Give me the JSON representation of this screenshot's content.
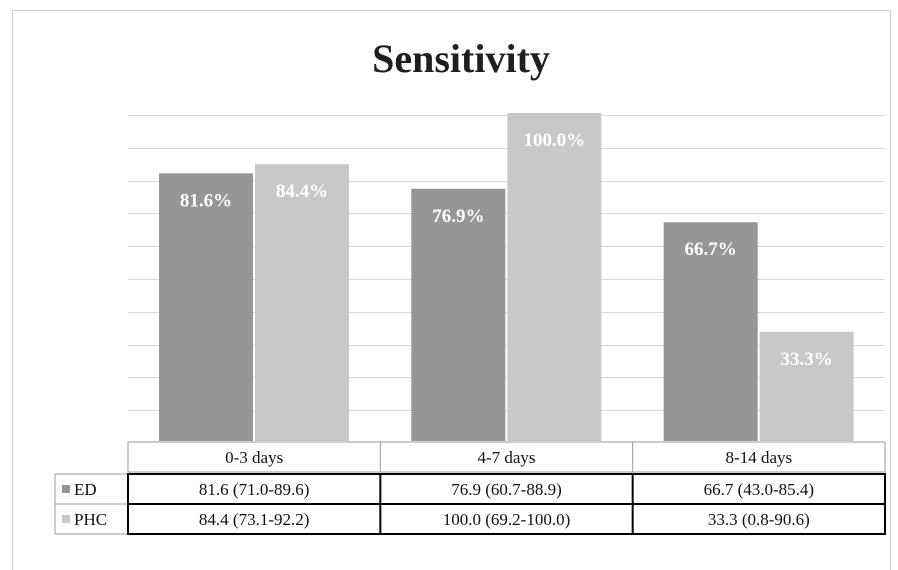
{
  "chart_data": {
    "type": "bar",
    "title": "Sensitivity",
    "categories": [
      "0-3 days",
      "4-7 days",
      "8-14 days"
    ],
    "series": [
      {
        "name": "ED",
        "color": "#969696",
        "values": [
          81.6,
          76.9,
          66.7
        ],
        "value_labels": [
          "81.6%",
          "76.9%",
          "66.7%"
        ],
        "table_values": [
          "81.6 (71.0-89.6)",
          "76.9 (60.7-88.9)",
          "66.7 (43.0-85.4)"
        ]
      },
      {
        "name": "PHC",
        "color": "#c8c8c8",
        "values": [
          84.4,
          100.0,
          33.3
        ],
        "value_labels": [
          "84.4%",
          "100.0%",
          "33.3%"
        ],
        "table_values": [
          "84.4 (73.1-92.2)",
          "100.0 (69.2-100.0)",
          "33.3 (0.8-90.6)"
        ]
      }
    ],
    "ylim": [
      0,
      100
    ],
    "grid": true,
    "legend": "data-table",
    "xlabel": "",
    "ylabel": ""
  }
}
